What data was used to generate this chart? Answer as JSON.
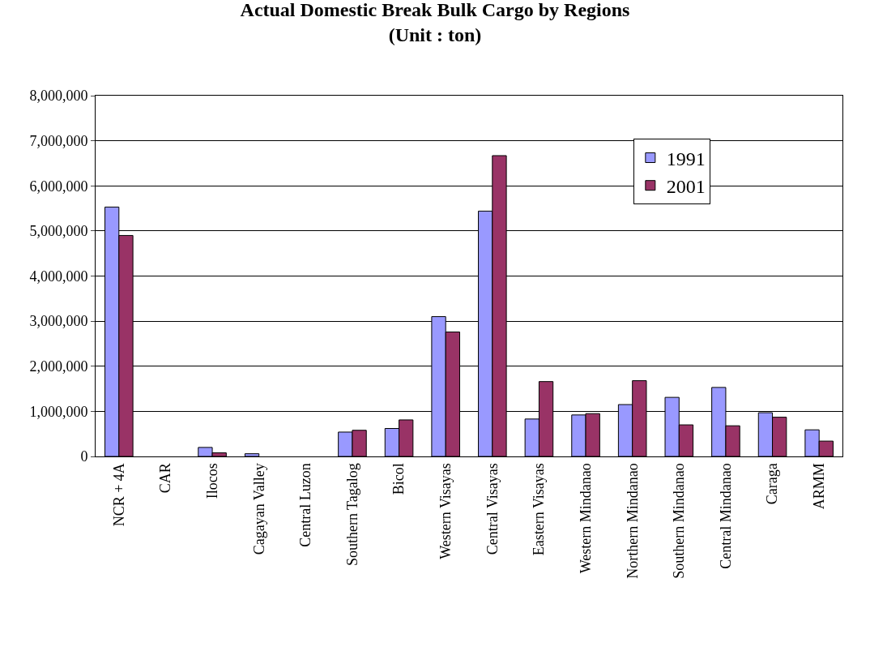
{
  "chart_data": {
    "type": "bar",
    "title": "Actual Domestic Break Bulk Cargo by Regions",
    "subtitle": "(Unit : ton)",
    "categories": [
      "NCR + 4A",
      "CAR",
      "Ilocos",
      "Cagayan Valley",
      "Central Luzon",
      "Southern Tagalog",
      "Bicol",
      "Western Visayas",
      "Central Visayas",
      "Eastern Visayas",
      "Western Mindanao",
      "Northern Mindanao",
      "Southern Mindanao",
      "Central Mindanao",
      "Caraga",
      "ARMM"
    ],
    "series": [
      {
        "name": "1991",
        "color": "#9999ff",
        "values": [
          5530000,
          0,
          200000,
          60000,
          0,
          540000,
          620000,
          3100000,
          5440000,
          830000,
          920000,
          1150000,
          1310000,
          1530000,
          970000,
          590000
        ]
      },
      {
        "name": "2001",
        "color": "#993366",
        "values": [
          4900000,
          0,
          80000,
          0,
          0,
          580000,
          810000,
          2760000,
          6670000,
          1660000,
          950000,
          1680000,
          700000,
          680000,
          870000,
          340000
        ]
      }
    ],
    "ylim": [
      0,
      8000000
    ],
    "yticks": [
      {
        "value": 0,
        "label": "0"
      },
      {
        "value": 1000000,
        "label": "1,000,000"
      },
      {
        "value": 2000000,
        "label": "2,000,000"
      },
      {
        "value": 3000000,
        "label": "3,000,000"
      },
      {
        "value": 4000000,
        "label": "4,000,000"
      },
      {
        "value": 5000000,
        "label": "5,000,000"
      },
      {
        "value": 6000000,
        "label": "6,000,000"
      },
      {
        "value": 7000000,
        "label": "7,000,000"
      },
      {
        "value": 8000000,
        "label": "8,000,000"
      }
    ],
    "grid": "y",
    "legend": "top right"
  }
}
